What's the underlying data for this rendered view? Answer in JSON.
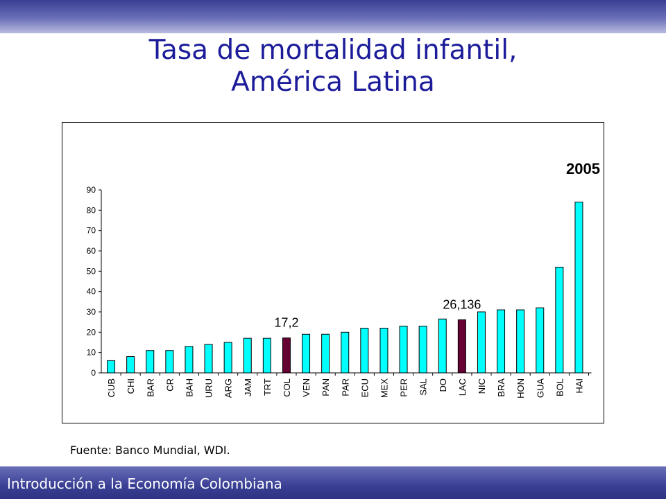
{
  "title_line1": "Tasa de mortalidad infantil,",
  "title_line2": "América Latina",
  "source_text": "Fuente: Banco Mundial, WDI.",
  "footer_text": "Introducción a la Economía Colombiana",
  "colors": {
    "band": "#3a3f94",
    "title": "#1c1c9a",
    "bar": "#00ffff",
    "highlight": "#660033"
  },
  "chart_data": {
    "type": "bar",
    "year_label": "2005",
    "categories": [
      "CUB",
      "CHI",
      "BAR",
      "CR",
      "BAH",
      "URU",
      "ARG",
      "JAM",
      "TRT",
      "COL",
      "VEN",
      "PAN",
      "PAR",
      "ECU",
      "MEX",
      "PER",
      "SAL",
      "DO",
      "LAC",
      "NIC",
      "BRA",
      "HON",
      "GUA",
      "BOL",
      "HAI"
    ],
    "values": [
      6,
      8,
      11,
      11,
      13,
      14,
      15,
      17,
      17,
      17.2,
      19,
      19,
      20,
      22,
      22,
      23,
      23,
      26.5,
      26.136,
      30,
      31,
      31,
      32,
      52,
      84
    ],
    "highlighted": [
      "COL",
      "LAC"
    ],
    "annotations": [
      {
        "category": "COL",
        "text": "17,2"
      },
      {
        "category": "LAC",
        "text": "26,136"
      }
    ],
    "yticks": [
      "0",
      "10",
      "20",
      "30",
      "40",
      "50",
      "60",
      "70",
      "80",
      "90"
    ],
    "ylim": [
      0,
      90
    ],
    "grid": false,
    "xlabel": "",
    "ylabel": ""
  }
}
